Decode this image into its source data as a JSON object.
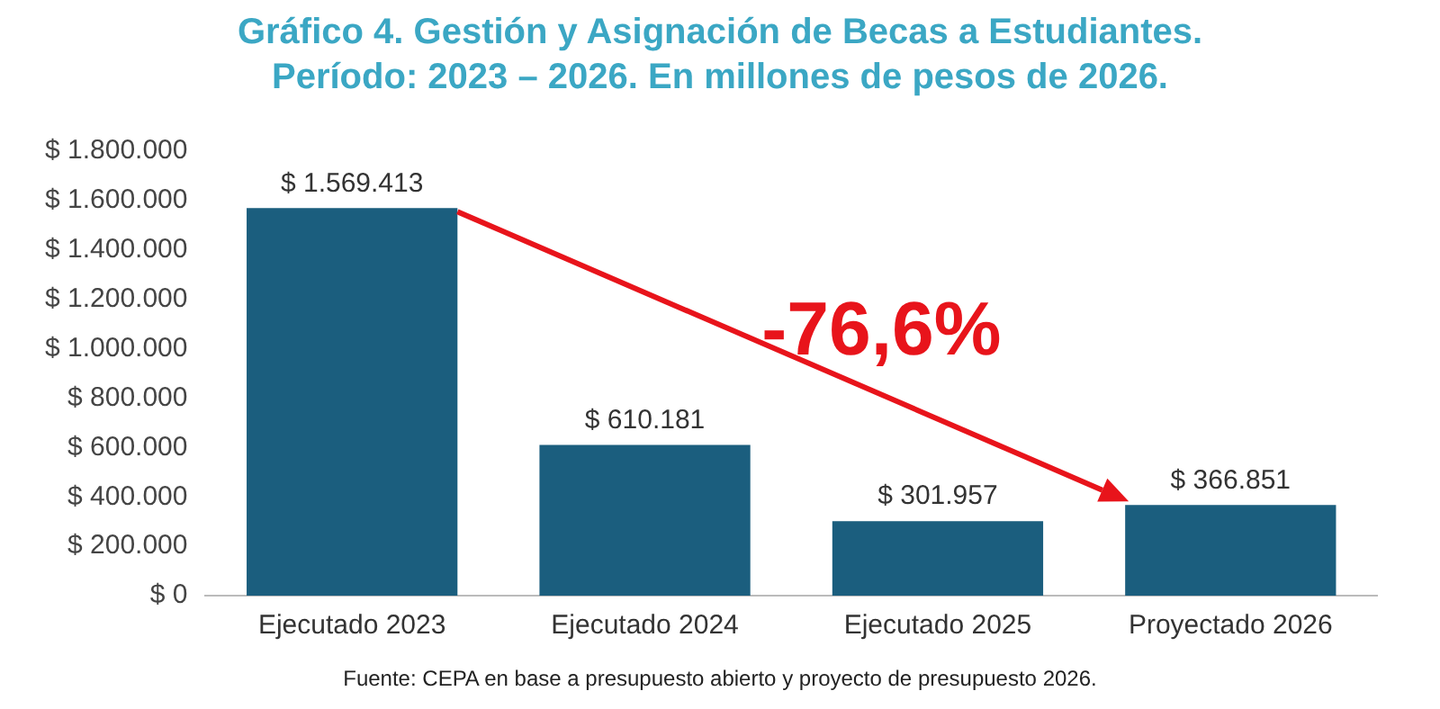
{
  "chart_data": {
    "type": "bar",
    "title": "Gráfico 4. Gestión y Asignación de Becas a Estudiantes.\nPeríodo: 2023 – 2026. En millones de pesos de 2026.",
    "categories": [
      "Ejecutado 2023",
      "Ejecutado 2024",
      "Ejecutado 2025",
      "Proyectado 2026"
    ],
    "values": [
      1569413,
      610181,
      301957,
      366851
    ],
    "value_labels": [
      "$ 1.569.413",
      "$ 610.181",
      "$ 301.957",
      "$ 366.851"
    ],
    "color": "#1b5e7e",
    "ylim": [
      0,
      1800000
    ],
    "yticks": [
      {
        "value": 0,
        "label": "$ 0"
      },
      {
        "value": 200000,
        "label": "$ 200.000"
      },
      {
        "value": 400000,
        "label": "$ 400.000"
      },
      {
        "value": 600000,
        "label": "$ 600.000"
      },
      {
        "value": 800000,
        "label": "$ 800.000"
      },
      {
        "value": 1000000,
        "label": "$ 1.000.000"
      },
      {
        "value": 1200000,
        "label": "$ 1.200.000"
      },
      {
        "value": 1400000,
        "label": "$ 1.400.000"
      },
      {
        "value": 1600000,
        "label": "$ 1.600.000"
      },
      {
        "value": 1800000,
        "label": "$ 1.800.000"
      }
    ],
    "grid": false,
    "legend": false,
    "annotations": [
      "-76,6%",
      "Fuente: CEPA en base a presupuesto abierto y proyecto de presupuesto 2026."
    ]
  }
}
